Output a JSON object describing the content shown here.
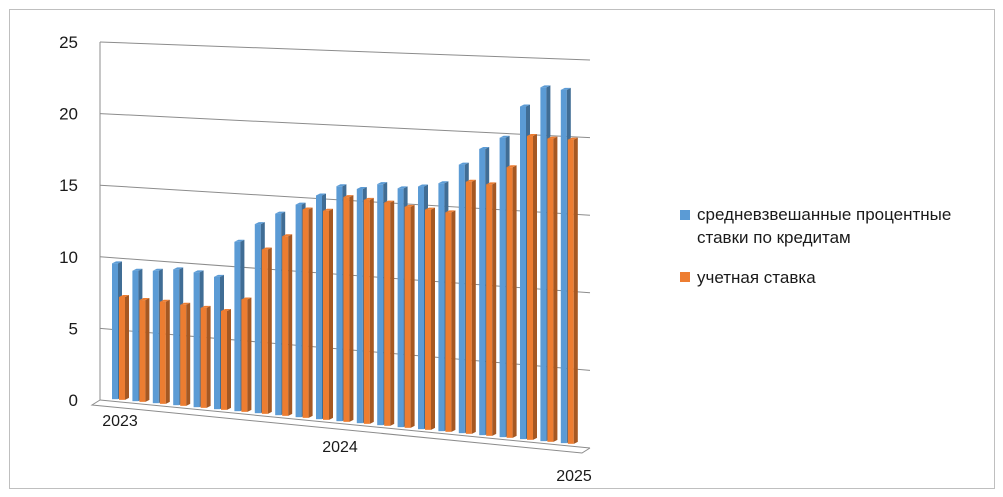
{
  "chart_data": {
    "type": "bar",
    "style": "3d-clustered-column",
    "title": "",
    "ylim": [
      0,
      25
    ],
    "yticks": [
      "0",
      "5",
      "10",
      "15",
      "20",
      "25"
    ],
    "xticks": [
      {
        "label": "2023",
        "index": 0
      },
      {
        "label": "2024",
        "index": 11
      },
      {
        "label": "2025",
        "index": 24
      }
    ],
    "grid": true,
    "legend_position": "right",
    "series": [
      {
        "name": "средневзвешанные процентные ставки по кредитам",
        "color": "#5b9bd5",
        "values": [
          9.6,
          9.2,
          9.3,
          9.5,
          9.4,
          9.2,
          11.7,
          13.0,
          13.8,
          14.5,
          15.2,
          15.9,
          15.8,
          16.2,
          16.0,
          16.2,
          16.5,
          17.8,
          18.9,
          19.7,
          21.8,
          23.1,
          23.0
        ]
      },
      {
        "name": "учетная ставка",
        "color": "#ed7d31",
        "values": [
          7.3,
          7.2,
          7.2,
          7.1,
          7.0,
          6.9,
          7.8,
          11.3,
          12.3,
          14.2,
          14.2,
          15.2,
          15.1,
          15.0,
          14.8,
          14.7,
          14.6,
          16.7,
          16.6,
          17.8,
          19.9,
          19.8,
          19.8
        ]
      }
    ]
  }
}
